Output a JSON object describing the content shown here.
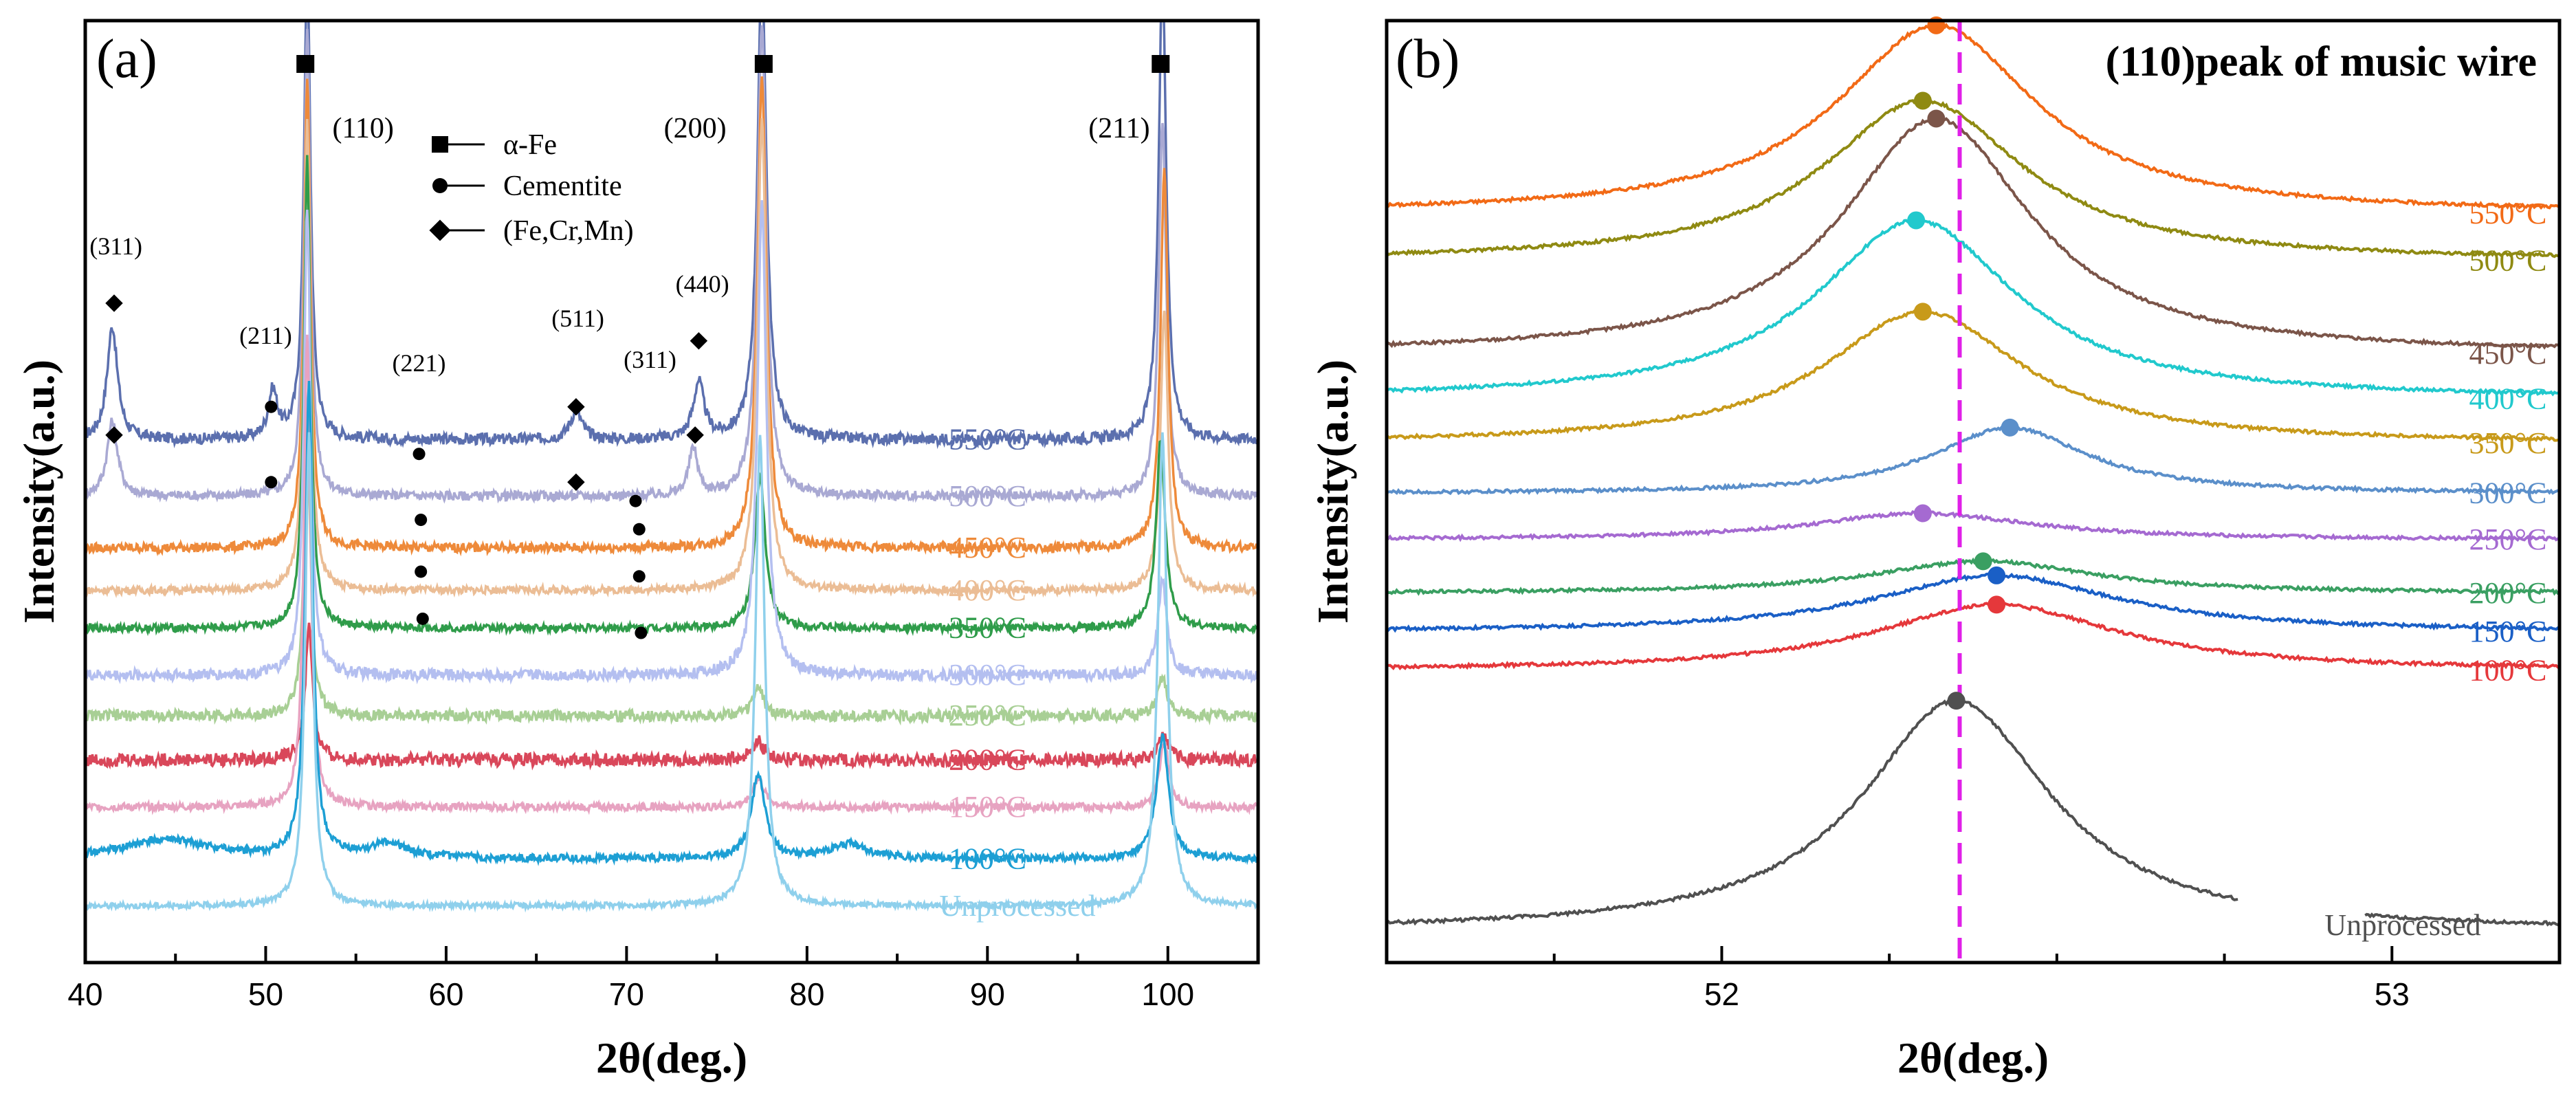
{
  "chart_data": [
    {
      "panel_label": "(a)",
      "type": "line",
      "xlabel": "2θ(deg.)",
      "ylabel": "Intensity(a.u.)",
      "xlim": [
        40,
        105
      ],
      "xticks": [
        40,
        50,
        60,
        70,
        80,
        90,
        100
      ],
      "legend": [
        {
          "marker": "square",
          "label": "α-Fe"
        },
        {
          "marker": "circle",
          "label": "Cementite"
        },
        {
          "marker": "diamond",
          "label": "(Fe,Cr,Mn)"
        }
      ],
      "peak_labels": [
        {
          "text": "(110)",
          "x": 55.4
        },
        {
          "text": "(200)",
          "x": 73.8
        },
        {
          "text": "(211)",
          "x": 97.3
        },
        {
          "text": "(311)",
          "x": 41.7
        },
        {
          "text": "(211)",
          "x": 50.0
        },
        {
          "text": "(221)",
          "x": 58.5
        },
        {
          "text": "(511)",
          "x": 67.3
        },
        {
          "text": "(311)",
          "x": 71.3
        },
        {
          "text": "(440)",
          "x": 74.2
        }
      ],
      "alpha_fe_markers": [
        52.2,
        77.6,
        99.6
      ],
      "series": [
        {
          "name": "550°C",
          "color": "#5b6fae",
          "baseline": 0.555,
          "noise": 0.006,
          "features": [
            [
              41.5,
              0.12,
              0.35
            ],
            [
              50.4,
              0.05,
              0.3
            ],
            [
              52.3,
              0.5,
              0.22
            ],
            [
              67.2,
              0.03,
              0.4
            ],
            [
              74.0,
              0.06,
              0.35
            ],
            [
              77.5,
              0.5,
              0.3
            ],
            [
              99.7,
              0.5,
              0.25
            ]
          ],
          "cementite": [
            [
              50.3,
              0.59
            ]
          ],
          "phase3": [
            [
              41.6,
              0.7
            ],
            [
              67.2,
              0.59
            ],
            [
              74.0,
              0.66
            ]
          ]
        },
        {
          "name": "500°C",
          "color": "#a9a9d3",
          "baseline": 0.495,
          "noise": 0.005,
          "features": [
            [
              41.5,
              0.08,
              0.35
            ],
            [
              52.3,
              0.5,
              0.22
            ],
            [
              73.7,
              0.05,
              0.3
            ],
            [
              77.5,
              0.5,
              0.3
            ],
            [
              99.7,
              0.4,
              0.25
            ]
          ],
          "cementite": [
            [
              50.3,
              0.51
            ],
            [
              58.5,
              0.54
            ],
            [
              70.5,
              0.49
            ]
          ],
          "phase3": [
            [
              41.6,
              0.56
            ],
            [
              67.2,
              0.51
            ],
            [
              73.8,
              0.56
            ]
          ]
        },
        {
          "name": "450°C",
          "color": "#ee8a3a",
          "baseline": 0.44,
          "noise": 0.005,
          "features": [
            [
              52.3,
              0.5,
              0.22
            ],
            [
              77.5,
              0.5,
              0.3
            ],
            [
              99.8,
              0.4,
              0.25
            ]
          ],
          "cementite": [
            [
              58.6,
              0.47
            ],
            [
              70.7,
              0.46
            ]
          ],
          "phase3": []
        },
        {
          "name": "400°C",
          "color": "#ebbd95",
          "baseline": 0.395,
          "noise": 0.004,
          "features": [
            [
              52.3,
              0.5,
              0.22
            ],
            [
              77.5,
              0.5,
              0.3
            ],
            [
              99.8,
              0.3,
              0.25
            ]
          ],
          "cementite": [
            [
              58.6,
              0.415
            ],
            [
              70.7,
              0.41
            ]
          ],
          "phase3": []
        },
        {
          "name": "350°C",
          "color": "#2f9c4a",
          "baseline": 0.355,
          "noise": 0.004,
          "features": [
            [
              52.3,
              0.5,
              0.22
            ],
            [
              77.4,
              0.16,
              0.35
            ],
            [
              99.6,
              0.2,
              0.3
            ]
          ],
          "cementite": [
            [
              58.7,
              0.365
            ],
            [
              70.8,
              0.35
            ]
          ],
          "phase3": []
        },
        {
          "name": "300°C",
          "color": "#b4bff0",
          "baseline": 0.305,
          "noise": 0.006,
          "features": [
            [
              52.3,
              0.5,
              0.22
            ],
            [
              77.5,
              0.5,
              0.3
            ],
            [
              99.7,
              0.1,
              0.3
            ]
          ],
          "cementite": [],
          "phase3": []
        },
        {
          "name": "250°C",
          "color": "#a8cf95",
          "baseline": 0.262,
          "noise": 0.006,
          "features": [
            [
              52.3,
              0.3,
              0.22
            ],
            [
              77.3,
              0.03,
              0.35
            ],
            [
              99.7,
              0.04,
              0.3
            ]
          ],
          "cementite": [],
          "phase3": []
        },
        {
          "name": "200°C",
          "color": "#d9475a",
          "baseline": 0.215,
          "noise": 0.007,
          "features": [
            [
              52.4,
              0.14,
              0.25
            ],
            [
              77.3,
              0.02,
              0.4
            ],
            [
              99.8,
              0.03,
              0.3
            ]
          ],
          "cementite": [],
          "phase3": []
        },
        {
          "name": "150°C",
          "color": "#e7a3c1",
          "baseline": 0.165,
          "noise": 0.004,
          "features": [
            [
              52.3,
              0.5,
              0.22
            ],
            [
              77.3,
              0.03,
              0.4
            ],
            [
              99.8,
              0.07,
              0.3
            ]
          ],
          "cementite": [],
          "phase3": []
        },
        {
          "name": "100°C",
          "color": "#1d9fd4",
          "baseline": 0.11,
          "noise": 0.004,
          "features": [
            [
              44.5,
              0.02,
              3.0
            ],
            [
              52.4,
              0.5,
              0.25
            ],
            [
              56.8,
              0.015,
              1.3
            ],
            [
              77.3,
              0.09,
              0.45
            ],
            [
              82.3,
              0.015,
              1.3
            ],
            [
              99.7,
              0.13,
              0.4
            ]
          ],
          "cementite": [],
          "phase3": []
        },
        {
          "name": "Unprocessed",
          "color": "#8fd0ec",
          "baseline": 0.06,
          "noise": 0.003,
          "features": [
            [
              52.4,
              0.5,
              0.25
            ],
            [
              77.4,
              0.5,
              0.3
            ],
            [
              99.7,
              0.5,
              0.3
            ]
          ],
          "cementite": [],
          "phase3": []
        }
      ]
    },
    {
      "panel_label": "(b)",
      "title": "(110)peak of music wire",
      "type": "line",
      "xlabel": "2θ(deg.)",
      "ylabel": "Intensity(a.u.)",
      "xlim": [
        51.5,
        53.25
      ],
      "xticks": [
        52,
        53
      ],
      "reference_line_x": 52.355,
      "series": [
        {
          "name": "550°C",
          "color": "#f26a16",
          "baseline": 0.795,
          "amp": 0.2,
          "center": 52.32,
          "width": 0.18,
          "marker_x": 52.32
        },
        {
          "name": "500°C",
          "color": "#8f8a12",
          "baseline": 0.745,
          "amp": 0.17,
          "center": 52.3,
          "width": 0.18,
          "marker_x": 52.3
        },
        {
          "name": "450°C",
          "color": "#7b5549",
          "baseline": 0.646,
          "amp": 0.25,
          "center": 52.32,
          "width": 0.17,
          "marker_x": 52.32
        },
        {
          "name": "400°C",
          "color": "#21c9cd",
          "baseline": 0.598,
          "amp": 0.19,
          "center": 52.29,
          "width": 0.18,
          "marker_x": 52.29
        },
        {
          "name": "350°C",
          "color": "#c89a1a",
          "baseline": 0.551,
          "amp": 0.14,
          "center": 52.3,
          "width": 0.18,
          "marker_x": 52.3
        },
        {
          "name": "300°C",
          "color": "#5b8fca",
          "baseline": 0.498,
          "amp": 0.07,
          "center": 52.43,
          "width": 0.14,
          "marker_x": 52.43
        },
        {
          "name": "250°C",
          "color": "#a56ad1",
          "baseline": 0.449,
          "amp": 0.028,
          "center": 52.3,
          "width": 0.2,
          "marker_x": 52.3
        },
        {
          "name": "200°C",
          "color": "#3a9f62",
          "baseline": 0.392,
          "amp": 0.034,
          "center": 52.39,
          "width": 0.2,
          "marker_x": 52.39
        },
        {
          "name": "150°C",
          "color": "#1a5fc6",
          "baseline": 0.351,
          "amp": 0.06,
          "center": 52.41,
          "width": 0.22,
          "marker_x": 52.41
        },
        {
          "name": "100°C",
          "color": "#e5383b",
          "baseline": 0.31,
          "amp": 0.07,
          "center": 52.41,
          "width": 0.22,
          "marker_x": 52.41
        },
        {
          "name": "Unprocessed",
          "color": "#505050",
          "baseline": 0.033,
          "amp": 0.245,
          "center": 52.35,
          "width": 0.17,
          "marker_x": 52.35
        }
      ]
    }
  ]
}
